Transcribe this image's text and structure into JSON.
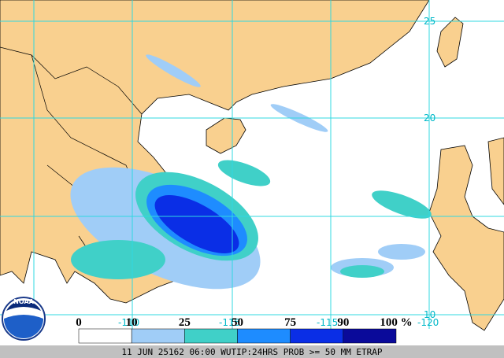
{
  "map": {
    "lat_labels": [
      "25",
      "20",
      "10"
    ],
    "lon_labels": [
      "-110",
      "-115",
      "-115",
      "-120"
    ],
    "legend": {
      "ticks": [
        0,
        10,
        25,
        50,
        75,
        90,
        {
          "value": 100,
          "label": "100 %"
        }
      ],
      "colors": [
        "#ffffff",
        "#a0cdf7",
        "#40d0c8",
        "#1e8cff",
        "#0a2ee6",
        "#0a0a9a"
      ]
    },
    "logo": "NOAA",
    "caption": "11 JUN 25162 06:00 WUTIP:24HRS PROB >= 50 MM ETRAP"
  }
}
